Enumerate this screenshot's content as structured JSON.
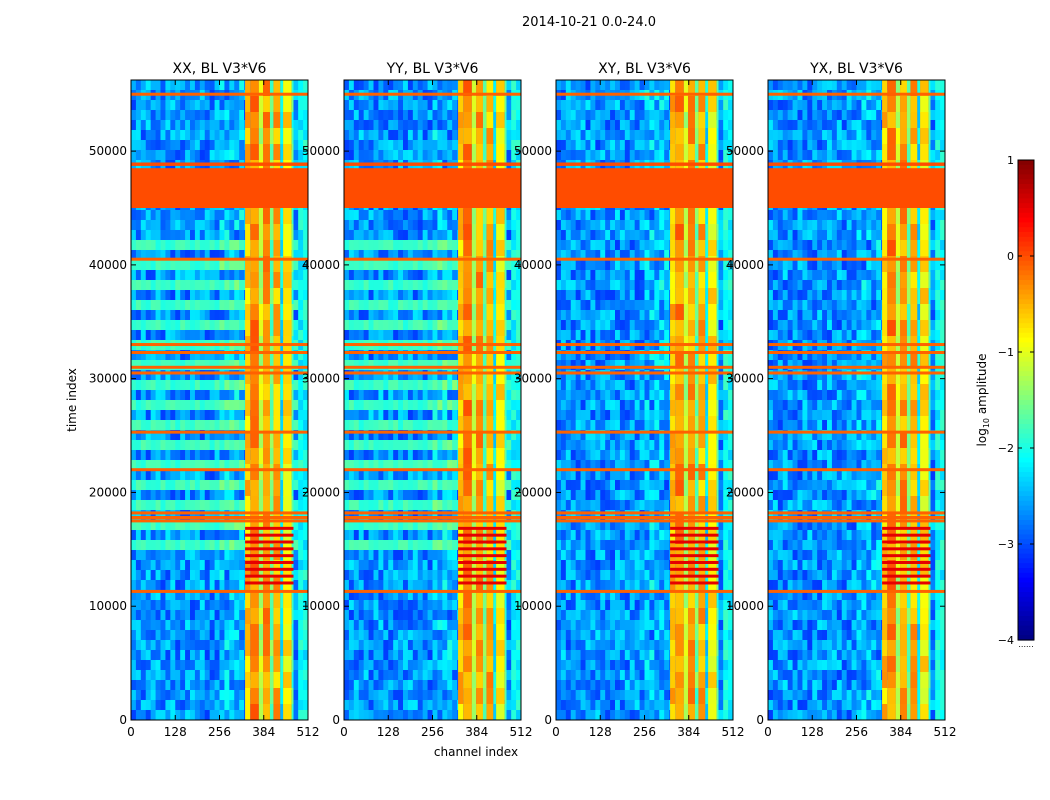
{
  "figure_title": "2014-10-21 0.0-24.0",
  "chart_data": {
    "type": "heatmap",
    "suptitle": "2014-10-21 0.0-24.0",
    "xlabel": "channel index",
    "ylabel": "time index",
    "xlim": [
      0,
      512
    ],
    "ylim": [
      0,
      56250
    ],
    "xticks": [
      0,
      128,
      256,
      384,
      512
    ],
    "yticks": [
      0,
      10000,
      20000,
      30000,
      40000,
      50000
    ],
    "panels": [
      {
        "title": "XX, BL V3*V6",
        "pol": "XX"
      },
      {
        "title": "YY, BL V3*V6",
        "pol": "YY"
      },
      {
        "title": "XY, BL V3*V6",
        "pol": "XY"
      },
      {
        "title": "YX, BL V3*V6",
        "pol": "YX"
      }
    ],
    "colorbar": {
      "label": "log$_{10}$ amplitude",
      "range": [
        -4,
        1
      ],
      "ticks": [
        1,
        0,
        -1,
        -2,
        -3,
        -4
      ],
      "tick_labels": [
        "1",
        "0",
        "−1",
        "−2",
        "−3",
        "−4"
      ],
      "colormap": "jet"
    },
    "flagged_blocks": [
      {
        "t_start": 45000,
        "t_end": 48500,
        "log_amp": 0.0
      },
      {
        "t_start": 48700,
        "t_end": 49000,
        "log_amp": 0.0
      }
    ],
    "bright_channel_band": [
      330,
      470
    ],
    "rfi_rows": [
      11300,
      17500,
      17800,
      18200,
      22000,
      25300,
      30500,
      31000,
      32300,
      33000,
      40500,
      55000
    ]
  }
}
